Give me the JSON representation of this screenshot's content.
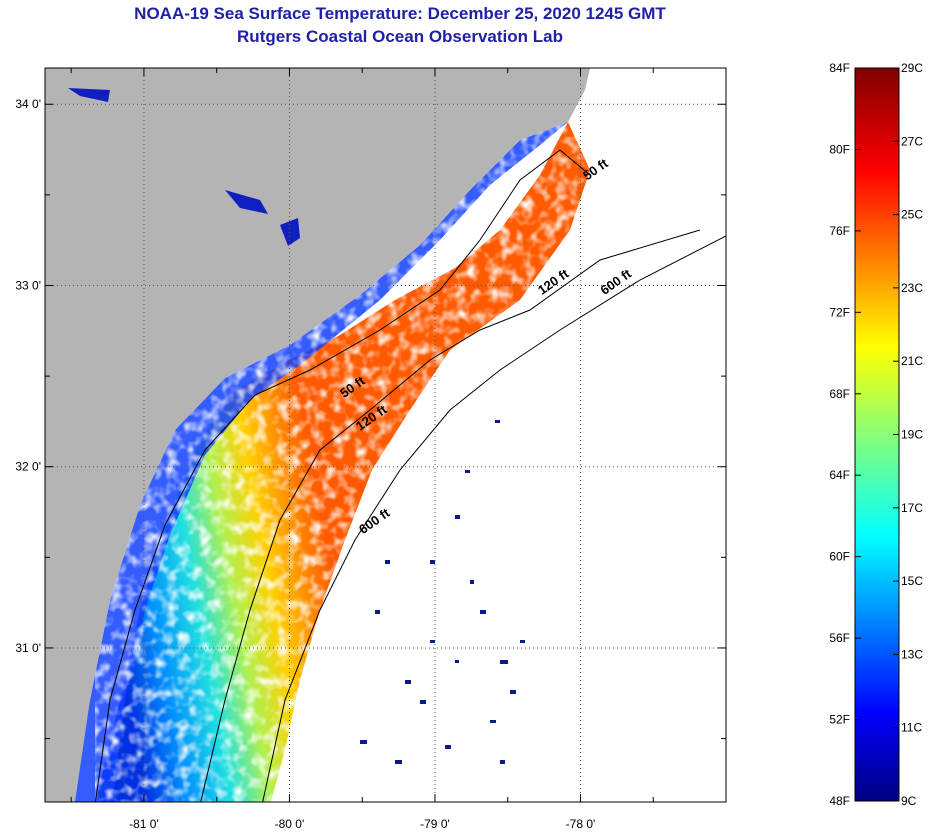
{
  "title": "NOAA-19 Sea Surface Temperature:  December 25, 2020 1245 GMT",
  "subtitle": "Rutgers Coastal Ocean Observation Lab",
  "map": {
    "lat_ticks": [
      {
        "value": 34,
        "label": "34 0'"
      },
      {
        "value": 33,
        "label": "33 0'"
      },
      {
        "value": 32,
        "label": "32 0'"
      },
      {
        "value": 31,
        "label": "31 0'"
      }
    ],
    "lon_ticks": [
      {
        "value": -81,
        "label": "-81 0'"
      },
      {
        "value": -80,
        "label": "-80 0'"
      },
      {
        "value": -79,
        "label": "-79 0'"
      },
      {
        "value": -78,
        "label": "-78 0'"
      }
    ],
    "lat_range": [
      30.15,
      34.2
    ],
    "lon_range": [
      -81.68,
      -77.0
    ],
    "colors": {
      "land": "#b4b4b4",
      "no_data": "#ffffff",
      "isobath": "#000000"
    },
    "contours": [
      {
        "label": "50 ft",
        "lat": 33.62,
        "lon": -77.88
      },
      {
        "label": "120 ft",
        "lat": 33.0,
        "lon": -78.17
      },
      {
        "label": "600 ft",
        "lat": 33.0,
        "lon": -77.74
      },
      {
        "label": "50 ft",
        "lat": 32.42,
        "lon": -79.55
      },
      {
        "label": "120 ft",
        "lat": 32.25,
        "lon": -79.42
      },
      {
        "label": "600 ft",
        "lat": 31.68,
        "lon": -79.4
      }
    ]
  },
  "colorbar": {
    "f_labels": [
      "84F",
      "80F",
      "76F",
      "72F",
      "68F",
      "64F",
      "60F",
      "56F",
      "52F",
      "48F"
    ],
    "c_labels": [
      "29C",
      "27C",
      "25C",
      "23C",
      "21C",
      "19C",
      "17C",
      "15C",
      "13C",
      "11C",
      "9C"
    ],
    "f_range": [
      48,
      84
    ],
    "c_range": [
      9,
      29
    ]
  }
}
